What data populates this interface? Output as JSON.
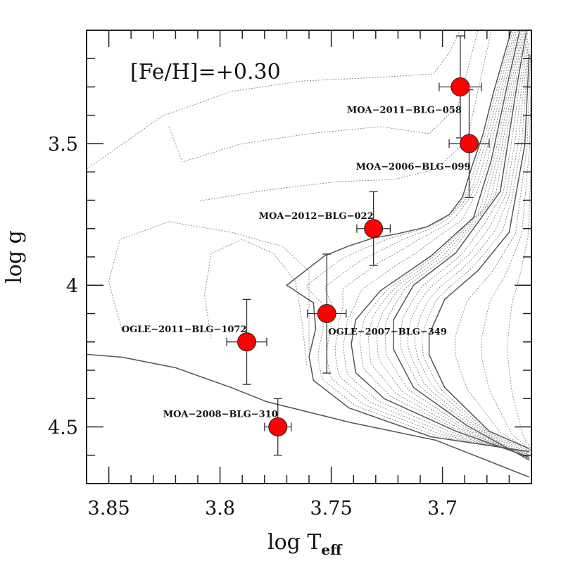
{
  "chart_data": {
    "type": "scatter",
    "title": "",
    "xlabel": "log T",
    "xlabel_sub": "eff",
    "ylabel": "log g",
    "xlim": [
      3.86,
      3.66
    ],
    "ylim": [
      4.7,
      3.1
    ],
    "x_inverted": true,
    "y_inverted": true,
    "x_ticks": [
      3.85,
      3.8,
      3.75,
      3.7
    ],
    "x_tick_labels": [
      "3.85",
      "3.8",
      "3.75",
      "3.7"
    ],
    "x_minor_step": 0.01,
    "y_ticks": [
      3.5,
      4.0,
      4.5
    ],
    "y_tick_labels": [
      "3.5",
      "4",
      "4.5"
    ],
    "y_minor_step": 0.1,
    "grid": false,
    "annotation": "[Fe/H]=+0.30",
    "marker_color": "#ff0000",
    "points": [
      {
        "name": "MOA-2011-BLG-058",
        "x": 3.692,
        "y": 3.3,
        "xerr": 0.0095,
        "yerr": 0.18,
        "label_pos": "below-left"
      },
      {
        "name": "MOA-2006-BLG-099",
        "x": 3.688,
        "y": 3.5,
        "xerr": 0.009,
        "yerr": 0.19,
        "label_pos": "below-left"
      },
      {
        "name": "MOA-2012-BLG-022",
        "x": 3.731,
        "y": 3.8,
        "xerr": 0.0075,
        "yerr": 0.13,
        "label_pos": "above-left"
      },
      {
        "name": "OGLE-2007-BLG-349",
        "x": 3.752,
        "y": 4.1,
        "xerr": 0.0087,
        "yerr": 0.21,
        "label_pos": "below-right"
      },
      {
        "name": "OGLE-2011-BLG-1072",
        "x": 3.788,
        "y": 4.2,
        "xerr": 0.009,
        "yerr": 0.15,
        "label_pos": "above-left"
      },
      {
        "name": "MOA-2008-BLG-310",
        "x": 3.774,
        "y": 4.5,
        "xerr": 0.006,
        "yerr": 0.1,
        "label_pos": "above-left"
      }
    ],
    "isochrones_solid": [
      {
        "x": [
          3.86,
          3.844,
          3.82,
          3.795,
          3.779,
          3.741,
          3.703,
          3.661
        ],
        "y": [
          4.244,
          4.254,
          4.291,
          4.361,
          4.411,
          4.485,
          4.547,
          4.677
        ]
      },
      {
        "x": [
          3.669,
          3.677,
          3.682,
          3.687,
          3.691,
          3.697,
          3.707,
          3.72,
          3.731,
          3.742,
          3.753,
          3.77,
          3.758,
          3.757,
          3.76,
          3.758,
          3.742,
          3.705,
          3.661
        ],
        "y": [
          3.099,
          3.318,
          3.473,
          3.587,
          3.689,
          3.751,
          3.794,
          3.818,
          3.833,
          3.861,
          3.896,
          4.0,
          4.062,
          4.154,
          4.251,
          4.336,
          4.433,
          4.535,
          4.587
        ]
      },
      {
        "x": [
          3.665,
          3.671,
          3.678,
          3.686,
          3.705,
          3.728,
          3.739,
          3.741,
          3.739,
          3.726,
          3.694,
          3.661
        ],
        "y": [
          3.092,
          3.298,
          3.557,
          3.761,
          3.896,
          4.02,
          4.122,
          4.207,
          4.309,
          4.401,
          4.515,
          4.607
        ]
      },
      {
        "x": [
          3.662,
          3.667,
          3.674,
          3.694,
          3.713,
          3.722,
          3.722,
          3.713,
          3.689,
          3.661
        ],
        "y": [
          3.092,
          3.318,
          3.669,
          3.886,
          4.0,
          4.122,
          4.226,
          4.361,
          4.495,
          4.617
        ]
      },
      {
        "x": [
          3.661,
          3.663,
          3.67,
          3.684,
          3.699,
          3.706,
          3.706,
          3.699,
          3.679,
          3.661
        ],
        "y": [
          3.184,
          3.505,
          3.813,
          3.948,
          4.05,
          4.174,
          4.246,
          4.361,
          4.515,
          4.577
        ]
      }
    ],
    "isochrones_dotted": [
      {
        "x": [
          3.86,
          3.826,
          3.795,
          3.763,
          3.728,
          3.704,
          3.697,
          3.692
        ],
        "y": [
          3.59,
          3.403,
          3.316,
          3.279,
          3.266,
          3.254,
          3.179,
          3.099
        ]
      },
      {
        "x": [
          3.823,
          3.817,
          3.791,
          3.76,
          3.728,
          3.706,
          3.693,
          3.684
        ],
        "y": [
          3.44,
          3.565,
          3.502,
          3.465,
          3.44,
          3.465,
          3.366,
          3.099
        ]
      },
      {
        "x": [
          3.809,
          3.779,
          3.747,
          3.722,
          3.703,
          3.689,
          3.678
        ],
        "y": [
          3.702,
          3.664,
          3.634,
          3.627,
          3.59,
          3.49,
          3.099
        ]
      },
      {
        "x": [
          3.844,
          3.85,
          3.845,
          3.823,
          3.795,
          3.772,
          3.76,
          3.76,
          3.76
        ],
        "y": [
          4.162,
          3.988,
          3.838,
          3.776,
          3.813,
          3.863,
          3.95,
          4.062,
          4.236
        ]
      },
      {
        "x": [
          3.804,
          3.807,
          3.804,
          3.79,
          3.776,
          3.766,
          3.763,
          3.761
        ],
        "y": [
          4.187,
          4.037,
          3.888,
          3.838,
          3.888,
          3.988,
          4.137,
          4.286
        ]
      }
    ]
  }
}
